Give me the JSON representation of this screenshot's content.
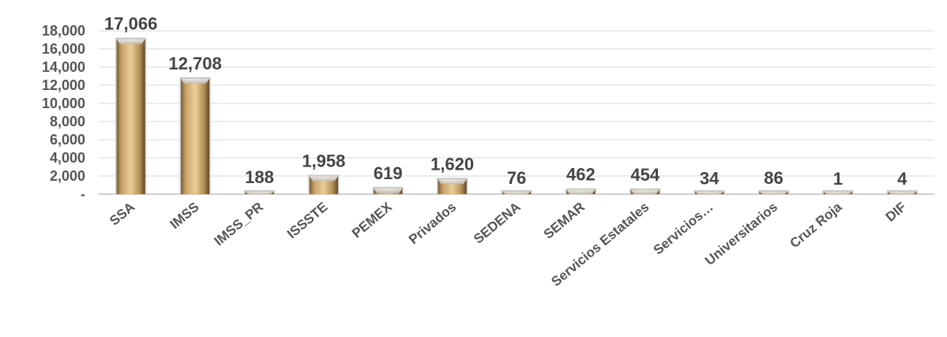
{
  "chart_data": {
    "type": "bar",
    "categories": [
      "SSA",
      "IMSS",
      "IMSS_PR",
      "ISSSTE",
      "PEMEX",
      "Privados",
      "SEDENA",
      "SEMAR",
      "Servicios Estatales",
      "Servicios…",
      "Universitarios",
      "Cruz Roja",
      "DIF"
    ],
    "values": [
      17066,
      12708,
      188,
      1958,
      619,
      1620,
      76,
      462,
      454,
      34,
      86,
      1,
      4
    ],
    "data_labels": [
      "17,066",
      "12,708",
      "188",
      "1,958",
      "619",
      "1,620",
      "76",
      "462",
      "454",
      "34",
      "86",
      "1",
      "4"
    ],
    "y_tick_labels": [
      "-",
      "2,000",
      "4,000",
      "6,000",
      "8,000",
      "10,000",
      "12,000",
      "14,000",
      "16,000",
      "18,000"
    ],
    "y_tick_values": [
      0,
      2000,
      4000,
      6000,
      8000,
      10000,
      12000,
      14000,
      16000,
      18000
    ],
    "ylim": [
      0,
      18000
    ],
    "title": "",
    "xlabel": "",
    "ylabel": "",
    "grid": true,
    "legend": "none",
    "colors": {
      "bar_fill": "#b8935a",
      "bar_highlight": "#e6cd95",
      "bar_shadow": "#6f5530",
      "bar_edge": "#d9d9d9",
      "grid": "#d9d9d9",
      "text": "#555555"
    }
  }
}
